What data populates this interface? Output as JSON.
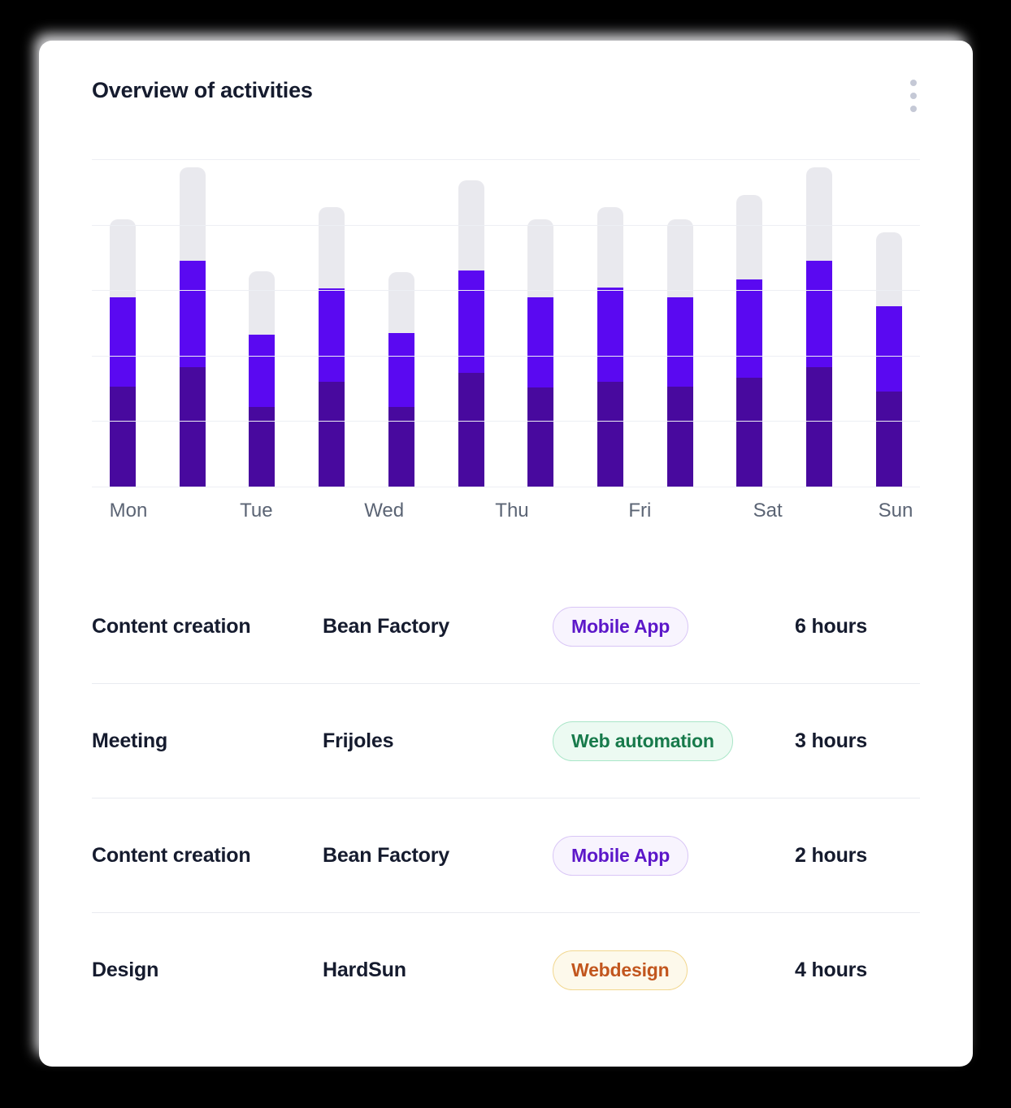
{
  "page": {
    "background": "#000000",
    "card_background": "#ffffff"
  },
  "card": {
    "title": "Overview of activities",
    "menu_icon": "vertical-ellipsis-icon"
  },
  "chart_data": {
    "type": "bar",
    "subtype": "stacked-vertical-bars",
    "title": "Overview of activities",
    "x_tick_labels": [
      "Mon",
      "Tue",
      "Wed",
      "Thu",
      "Fri",
      "Sat",
      "Sun"
    ],
    "num_bars": 12,
    "series": [
      {
        "name": "bottom-segment",
        "color": "#48099e",
        "values": [
          1.53,
          1.82,
          1.22,
          1.6,
          1.22,
          1.74,
          1.51,
          1.6,
          1.53,
          1.66,
          1.82,
          1.45
        ]
      },
      {
        "name": "middle-segment",
        "color": "#5a09f1",
        "values": [
          1.36,
          1.63,
          1.1,
          1.43,
          1.12,
          1.56,
          1.38,
          1.44,
          1.36,
          1.5,
          1.63,
          1.3
        ]
      },
      {
        "name": "top-segment",
        "color": "#e9e9ee",
        "values": [
          1.19,
          1.43,
          0.97,
          1.24,
          0.94,
          1.38,
          1.19,
          1.23,
          1.19,
          1.3,
          1.43,
          1.13
        ]
      }
    ],
    "ylim": [
      0,
      5
    ],
    "y_tick_labels": [],
    "gridlines": true,
    "gridline_count": 6,
    "gridline_color": "#edeff4",
    "legend": false
  },
  "table": {
    "rows": [
      {
        "activity": "Content creation",
        "client": "Bean Factory",
        "tag": {
          "label": "Mobile App",
          "text_color": "#5c17c9",
          "bg_color": "#f8f4fe",
          "border_color": "#d9c6f6"
        },
        "hours": "6 hours"
      },
      {
        "activity": "Meeting",
        "client": "Frijoles",
        "tag": {
          "label": "Web automation",
          "text_color": "#177a4b",
          "bg_color": "#ecfaf2",
          "border_color": "#aae6c8"
        },
        "hours": "3 hours"
      },
      {
        "activity": "Content creation",
        "client": "Bean Factory",
        "tag": {
          "label": "Mobile App",
          "text_color": "#5c17c9",
          "bg_color": "#f8f4fe",
          "border_color": "#d9c6f6"
        },
        "hours": "2 hours"
      },
      {
        "activity": "Design",
        "client": "HardSun",
        "tag": {
          "label": "Webdesign",
          "text_color": "#c2561e",
          "bg_color": "#fdf9eb",
          "border_color": "#f2d78f"
        },
        "hours": "4 hours"
      }
    ]
  }
}
